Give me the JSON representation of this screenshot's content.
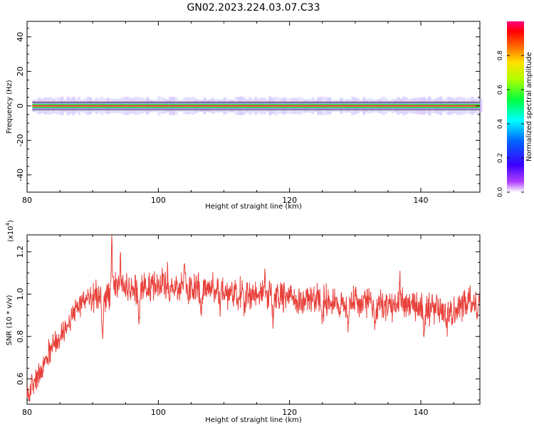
{
  "chart_data": [
    {
      "type": "heatmap",
      "title": "GN02.2023.224.03.07.C33",
      "xlabel": "Height of straight line (km)",
      "ylabel": "Frequency (Hz)",
      "xlim": [
        80,
        149
      ],
      "ylim": [
        -50,
        49
      ],
      "xticks": [
        "80",
        "100",
        "120",
        "140"
      ],
      "yticks": [
        "-40",
        "-20",
        "0",
        "20",
        "40"
      ],
      "colorbar": {
        "label": "Normalized spectral amplitude",
        "range": [
          0,
          1
        ],
        "ticks": [
          "0.0",
          "0.2",
          "0.4",
          "0.6",
          "0.8"
        ]
      },
      "band": {
        "center_hz": 0,
        "x_start": 80.8,
        "x_end": 149,
        "description_values": {
          "core_halfwidth_hz": 0.6,
          "green_halfwidth_hz": 1.4,
          "purple_halfwidth_hz": 2.6
        }
      }
    },
    {
      "type": "line",
      "xlabel": "Height of straight line (km)",
      "ylabel": "SNR (10 * v/v)",
      "y_exponent_label": "(x10",
      "y_exponent_power": "4",
      "y_exponent_close": ")",
      "xlim": [
        80,
        149
      ],
      "ylim": [
        0.48,
        1.28
      ],
      "xticks": [
        "80",
        "100",
        "120",
        "140"
      ],
      "yticks": [
        "0.6",
        "0.8",
        "1.0",
        "1.2"
      ],
      "series": [
        {
          "color": "#e8403a",
          "anchors": [
            [
              80.0,
              0.52
            ],
            [
              81.0,
              0.58
            ],
            [
              82.0,
              0.62
            ],
            [
              83.0,
              0.7
            ],
            [
              84.0,
              0.76
            ],
            [
              85.0,
              0.8
            ],
            [
              86.0,
              0.85
            ],
            [
              87.0,
              0.9
            ],
            [
              88.0,
              0.95
            ],
            [
              89.0,
              0.97
            ],
            [
              90.0,
              0.98
            ],
            [
              91.0,
              1.0
            ],
            [
              92.0,
              0.98
            ],
            [
              93.0,
              1.03
            ],
            [
              94.0,
              1.03
            ],
            [
              95.0,
              1.04
            ],
            [
              96.0,
              1.02
            ],
            [
              98.0,
              1.03
            ],
            [
              100.0,
              1.04
            ],
            [
              102.0,
              1.03
            ],
            [
              104.0,
              1.02
            ],
            [
              106.0,
              1.03
            ],
            [
              108.0,
              1.02
            ],
            [
              110.0,
              1.01
            ],
            [
              112.0,
              1.0
            ],
            [
              115.0,
              1.0
            ],
            [
              118.0,
              0.99
            ],
            [
              120.0,
              0.98
            ],
            [
              123.0,
              0.97
            ],
            [
              126.0,
              0.97
            ],
            [
              129.0,
              0.96
            ],
            [
              132.0,
              0.96
            ],
            [
              135.0,
              0.95
            ],
            [
              138.0,
              0.95
            ],
            [
              141.0,
              0.93
            ],
            [
              144.0,
              0.92
            ],
            [
              146.0,
              0.94
            ],
            [
              149.0,
              0.95
            ]
          ],
          "spikes": [
            [
              91.5,
              0.74
            ],
            [
              92.9,
              1.26
            ],
            [
              94.2,
              1.18
            ],
            [
              97.1,
              0.85
            ],
            [
              101.4,
              1.12
            ],
            [
              104.0,
              1.13
            ],
            [
              106.5,
              0.87
            ],
            [
              109.4,
              0.9
            ],
            [
              113.2,
              0.94
            ],
            [
              116.2,
              1.1
            ],
            [
              117.5,
              0.85
            ],
            [
              121.1,
              0.91
            ],
            [
              125.0,
              0.86
            ],
            [
              128.9,
              0.83
            ],
            [
              133.0,
              0.83
            ],
            [
              136.8,
              1.1
            ],
            [
              140.5,
              0.84
            ],
            [
              144.0,
              0.84
            ],
            [
              147.4,
              1.01
            ]
          ]
        }
      ]
    }
  ]
}
